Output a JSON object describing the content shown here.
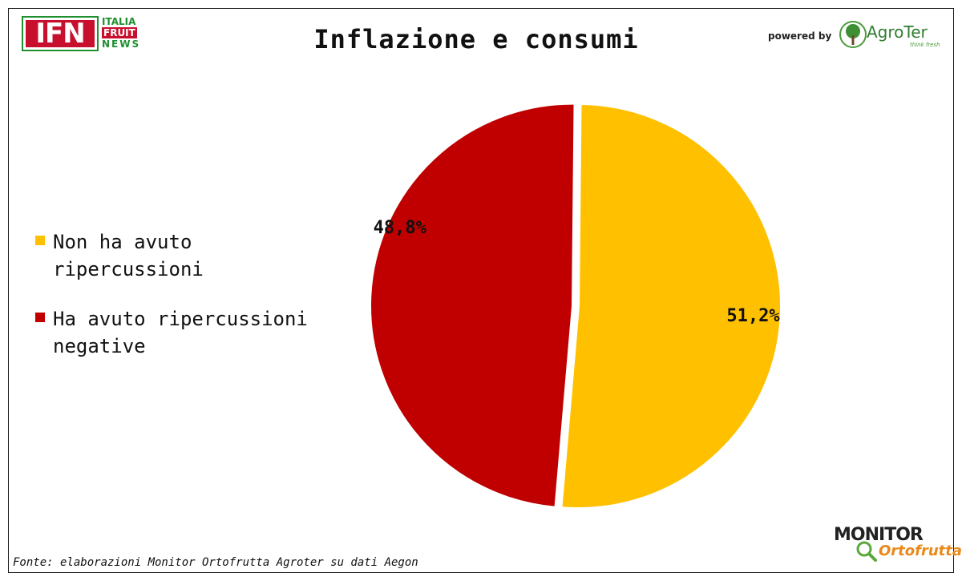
{
  "header": {
    "logo_ifn_letters": "IFN",
    "logo_ifn_line1": "ITALIA",
    "logo_ifn_line2": "FRUIT",
    "logo_ifn_line3": "NEWS",
    "powered_by": "powered by",
    "agroter_name": "AgroTer",
    "agroter_tagline": "think fresh"
  },
  "footer": {
    "source": "Fonte: elaborazioni Monitor Ortofrutta Agroter su dati Aegon",
    "monitor_line1": "MONITOR",
    "monitor_line2": "Ortofrutta"
  },
  "colors": {
    "yellow": "#FFC000",
    "red": "#C00000",
    "ifn_green": "#1F8F2F",
    "ifn_red": "#C8102E"
  },
  "chart_data": {
    "type": "pie",
    "title": "Inflazione e consumi",
    "legend_position": "left",
    "slices": [
      {
        "label": "Non ha avuto\nripercussioni",
        "value": 51.2,
        "display": "51,2%",
        "color": "#FFC000"
      },
      {
        "label": "Ha avuto ripercussioni\nnegative",
        "value": 48.8,
        "display": "48,8%",
        "color": "#C00000",
        "exploded": true
      }
    ]
  }
}
